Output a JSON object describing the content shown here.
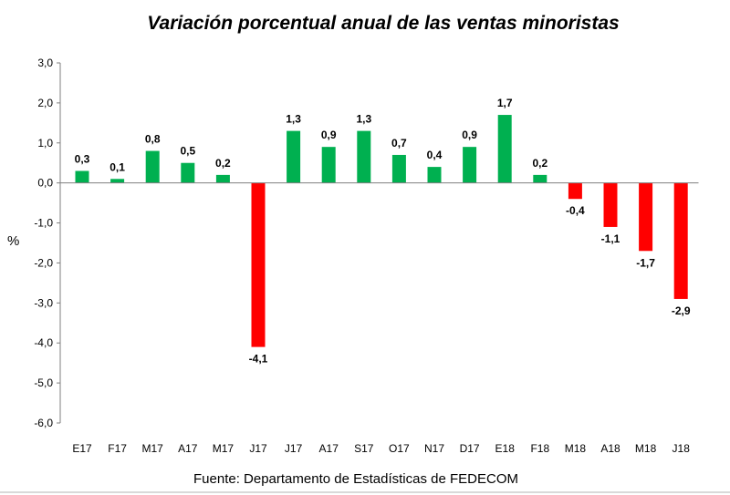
{
  "chart_data": {
    "type": "bar",
    "title": "Variación porcentual anual de las ventas minoristas",
    "ylabel": "%",
    "xlabel": "",
    "source": "Fuente: Departamento de Estadísticas de FEDECOM",
    "ylim": [
      -6,
      3
    ],
    "yticks": [
      "3,0",
      "2,0",
      "1,0",
      "0,0",
      "-1,0",
      "-2,0",
      "-3,0",
      "-4,0",
      "-5,0",
      "-6,0"
    ],
    "categories": [
      "E17",
      "F17",
      "M17",
      "A17",
      "M17",
      "J17",
      "J17",
      "A17",
      "S17",
      "O17",
      "N17",
      "D17",
      "E18",
      "F18",
      "M18",
      "A18",
      "M18",
      "J18"
    ],
    "values": [
      0.3,
      0.1,
      0.8,
      0.5,
      0.2,
      -4.1,
      1.3,
      0.9,
      1.3,
      0.7,
      0.4,
      0.9,
      1.7,
      0.2,
      -0.4,
      -1.1,
      -1.7,
      -2.9
    ],
    "data_labels": [
      "0,3",
      "0,1",
      "0,8",
      "0,5",
      "0,2",
      "-4,1",
      "1,3",
      "0,9",
      "1,3",
      "0,7",
      "0,4",
      "0,9",
      "1,7",
      "0,2",
      "-0,4",
      "-1,1",
      "-1,7",
      "-2,9"
    ],
    "colors": {
      "positive": "#00b050",
      "negative": "#ff0000",
      "axis": "#7f7f7f"
    },
    "grid": false,
    "legend": "none"
  }
}
